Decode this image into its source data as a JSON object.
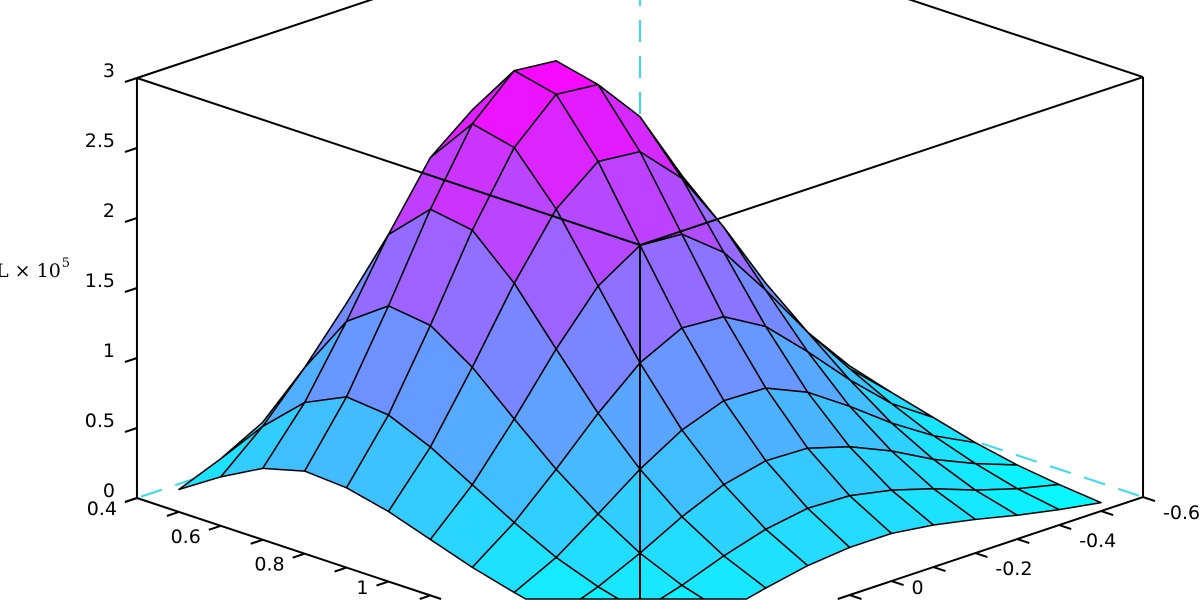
{
  "chart_data": {
    "type": "surface",
    "zlabel": "L × 10",
    "zlabel_exponent": "5",
    "colormap": {
      "low": "#00ffff",
      "high": "#ff00ff"
    },
    "mesh_edge_color": "#000000",
    "box_hidden_edge_color": "#33ddee",
    "xlim": [
      0.4,
      1.6
    ],
    "ylim": [
      -0.6,
      0.6
    ],
    "zlim": [
      0,
      3
    ],
    "xticks": [
      "0.4",
      "0.6",
      "0.8",
      "1"
    ],
    "xtick_values": [
      0.4,
      0.6,
      0.8,
      1.0
    ],
    "yticks": [
      "-0.6",
      "-0.4",
      "-0.2",
      "0"
    ],
    "ytick_values": [
      -0.6,
      -0.4,
      -0.2,
      0.0
    ],
    "zticks": [
      "0",
      "0.5",
      "1",
      "1.5",
      "2",
      "2.5",
      "3"
    ],
    "ztick_values": [
      0,
      0.5,
      1,
      1.5,
      2,
      2.5,
      3
    ],
    "x": [
      0.5,
      0.6,
      0.7,
      0.8,
      0.9,
      1.0,
      1.1,
      1.2,
      1.3,
      1.4,
      1.5,
      1.6
    ],
    "y": [
      -0.5,
      -0.4,
      -0.3,
      -0.2,
      -0.1,
      0.0,
      0.1,
      0.2,
      0.3,
      0.4,
      0.5,
      0.6
    ],
    "z": [
      [
        0.15,
        0.26,
        0.4,
        0.57,
        0.72,
        0.81,
        0.82,
        0.75,
        0.6,
        0.44,
        0.28,
        0.16
      ],
      [
        0.31,
        0.55,
        0.86,
        1.22,
        1.54,
        1.74,
        1.76,
        1.59,
        1.29,
        0.93,
        0.61,
        0.35
      ],
      [
        0.45,
        0.8,
        1.26,
        1.78,
        2.25,
        2.54,
        2.57,
        2.33,
        1.88,
        1.36,
        0.88,
        0.51
      ],
      [
        0.52,
        0.92,
        1.45,
        2.05,
        2.58,
        2.92,
        2.95,
        2.67,
        2.16,
        1.57,
        1.02,
        0.59
      ],
      [
        0.51,
        0.89,
        1.41,
        2.0,
        2.52,
        2.85,
        2.88,
        2.6,
        2.11,
        1.53,
        0.99,
        0.57
      ],
      [
        0.44,
        0.78,
        1.23,
        1.73,
        2.18,
        2.47,
        2.5,
        2.26,
        1.83,
        1.33,
        0.86,
        0.5
      ],
      [
        0.35,
        0.62,
        0.98,
        1.38,
        1.75,
        1.98,
        2.0,
        1.81,
        1.46,
        1.06,
        0.69,
        0.4
      ],
      [
        0.27,
        0.47,
        0.74,
        1.04,
        1.32,
        1.49,
        1.51,
        1.36,
        1.1,
        0.8,
        0.52,
        0.3
      ],
      [
        0.19,
        0.34,
        0.53,
        0.75,
        0.95,
        1.08,
        1.09,
        0.98,
        0.8,
        0.58,
        0.37,
        0.22
      ],
      [
        0.13,
        0.24,
        0.37,
        0.53,
        0.66,
        0.75,
        0.76,
        0.69,
        0.56,
        0.4,
        0.26,
        0.15
      ],
      [
        0.09,
        0.16,
        0.25,
        0.36,
        0.45,
        0.51,
        0.52,
        0.47,
        0.38,
        0.27,
        0.18,
        0.1
      ],
      [
        0.06,
        0.11,
        0.17,
        0.24,
        0.3,
        0.34,
        0.34,
        0.31,
        0.25,
        0.18,
        0.12,
        0.07
      ]
    ]
  }
}
